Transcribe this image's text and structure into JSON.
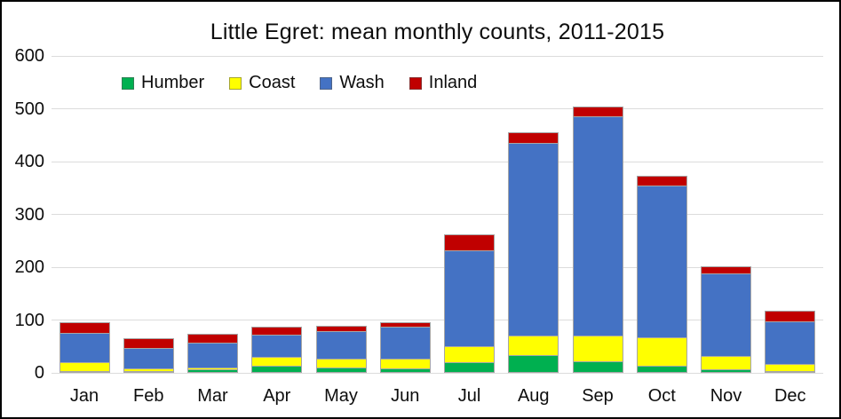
{
  "chart_data": {
    "type": "bar",
    "stacked": true,
    "title": "Little Egret: mean monthly counts, 2011-2015",
    "categories": [
      "Jan",
      "Feb",
      "Mar",
      "Apr",
      "May",
      "Jun",
      "Jul",
      "Aug",
      "Sep",
      "Oct",
      "Nov",
      "Dec"
    ],
    "series": [
      {
        "name": "Humber",
        "color": "#00B050",
        "values": [
          3,
          4,
          6,
          13,
          11,
          9,
          20,
          33,
          22,
          14,
          7,
          2
        ]
      },
      {
        "name": "Coast",
        "color": "#FFFF00",
        "values": [
          18,
          6,
          6,
          19,
          17,
          19,
          32,
          40,
          50,
          55,
          27,
          16
        ]
      },
      {
        "name": "Wash",
        "color": "#4472C4",
        "values": [
          57,
          41,
          48,
          44,
          55,
          62,
          184,
          365,
          417,
          290,
          158,
          82
        ]
      },
      {
        "name": "Inland",
        "color": "#C00000",
        "values": [
          22,
          20,
          19,
          17,
          12,
          11,
          31,
          22,
          21,
          19,
          15,
          21
        ]
      }
    ],
    "totals": [
      100,
      71,
      79,
      93,
      95,
      101,
      267,
      460,
      510,
      378,
      207,
      121
    ],
    "xlabel": "",
    "ylabel": "",
    "ylim": [
      0,
      600
    ],
    "yticks": [
      0,
      100,
      200,
      300,
      400,
      500,
      600
    ],
    "grid": true,
    "gridline_color": "#dcdcdc",
    "legend_position": "top-left-inside",
    "legend_entries": [
      "Humber",
      "Coast",
      "Wash",
      "Inland"
    ]
  }
}
